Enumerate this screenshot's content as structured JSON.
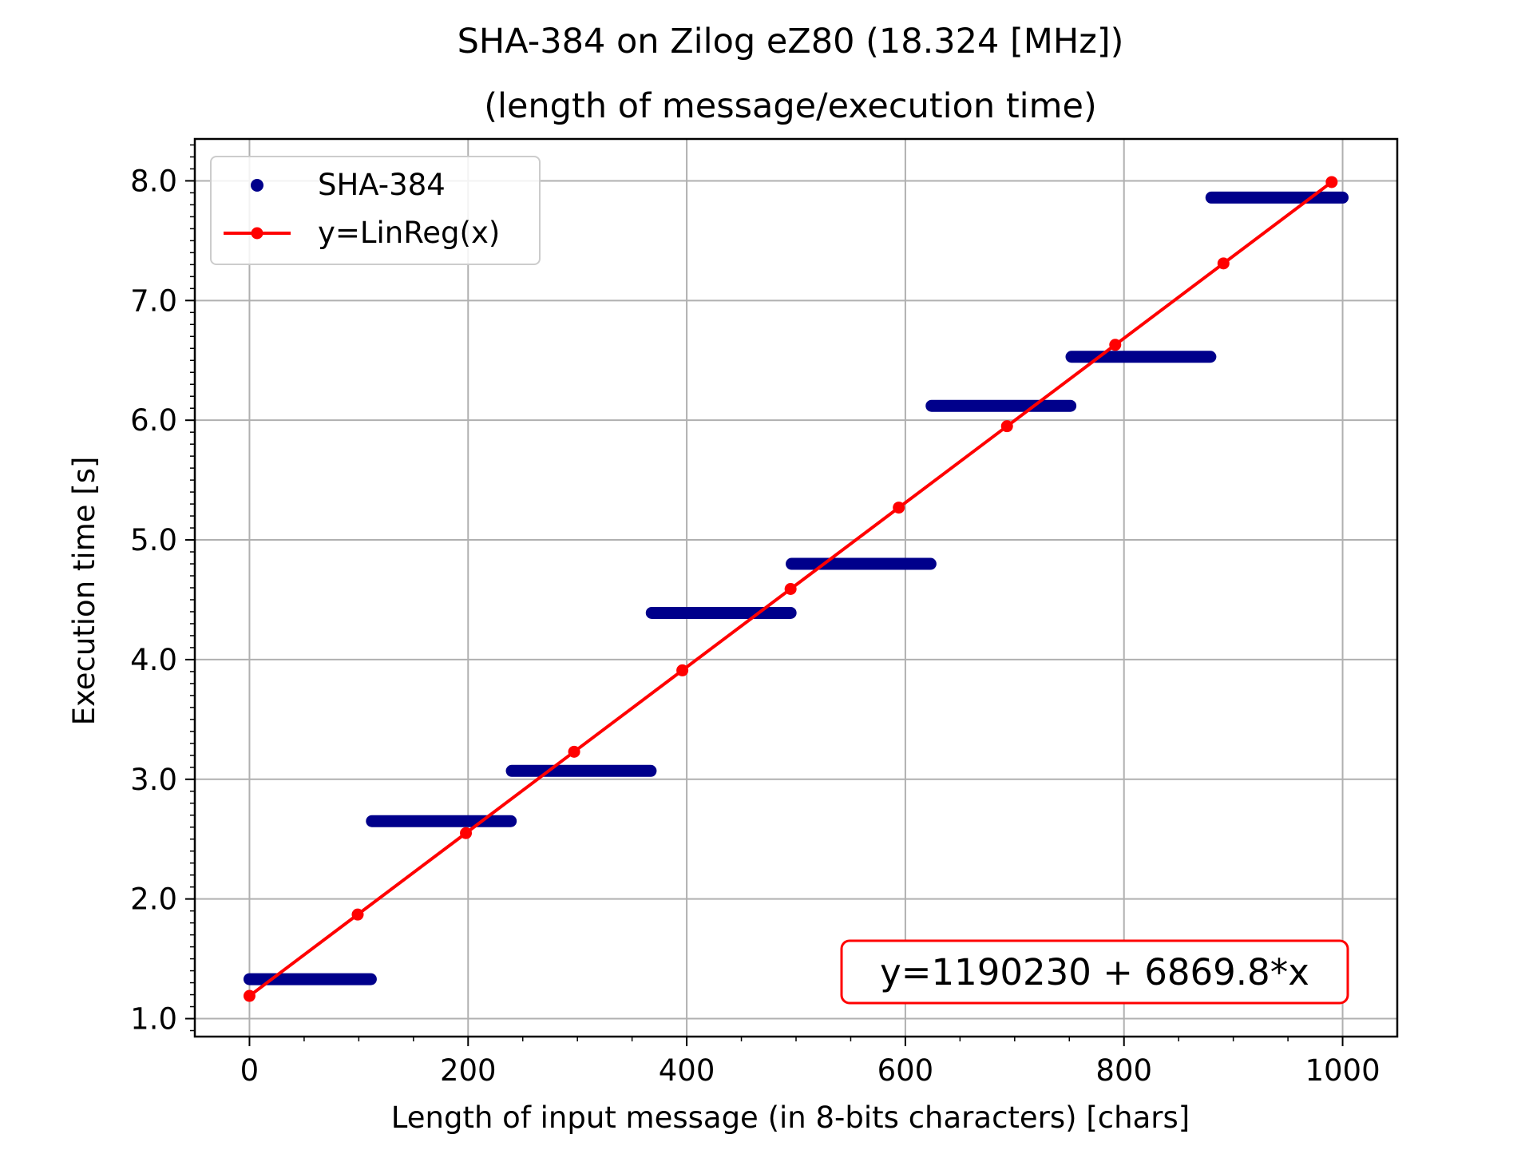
{
  "chart_data": {
    "type": "scatter",
    "title": "SHA-384 on Zilog eZ80 (18.324 [MHz])",
    "subtitle": "(length of message/execution time)",
    "xlabel": "Length of input message (in 8-bits characters) [chars]",
    "ylabel": "Execution time [s]",
    "xlim": [
      -50,
      1050
    ],
    "ylim": [
      0.85,
      8.35
    ],
    "xticks": [
      0,
      200,
      400,
      600,
      800,
      1000
    ],
    "xtick_labels": [
      "0",
      "200",
      "400",
      "600",
      "800",
      "1000"
    ],
    "yticks": [
      1.0,
      2.0,
      3.0,
      4.0,
      5.0,
      6.0,
      7.0,
      8.0
    ],
    "ytick_labels": [
      "1.0",
      "2.0",
      "3.0",
      "4.0",
      "5.0",
      "6.0",
      "7.0",
      "8.0"
    ],
    "grid": true,
    "legend_position": "top-left",
    "series": [
      {
        "name": "SHA-384",
        "type": "scatter",
        "color": "#00008b",
        "segments": [
          {
            "x_start": 0,
            "x_end": 111,
            "y": 1.33
          },
          {
            "x_start": 112,
            "x_end": 239,
            "y": 2.65
          },
          {
            "x_start": 240,
            "x_end": 367,
            "y": 3.07
          },
          {
            "x_start": 368,
            "x_end": 495,
            "y": 4.39
          },
          {
            "x_start": 496,
            "x_end": 623,
            "y": 4.8
          },
          {
            "x_start": 624,
            "x_end": 751,
            "y": 6.12
          },
          {
            "x_start": 752,
            "x_end": 879,
            "y": 6.53
          },
          {
            "x_start": 880,
            "x_end": 1000,
            "y": 7.86
          }
        ]
      },
      {
        "name": "y=LinReg(x)",
        "type": "line",
        "color": "#ff0000",
        "x": [
          0,
          99,
          198,
          297,
          396,
          495,
          594,
          693,
          792,
          891,
          990
        ],
        "y": [
          1.19,
          1.87,
          2.55,
          3.23,
          3.91,
          4.59,
          5.27,
          5.95,
          6.63,
          7.31,
          7.99
        ]
      }
    ],
    "annotation": {
      "text": "y=1190230 + 6869.8*x",
      "color": "#ff0000"
    }
  }
}
